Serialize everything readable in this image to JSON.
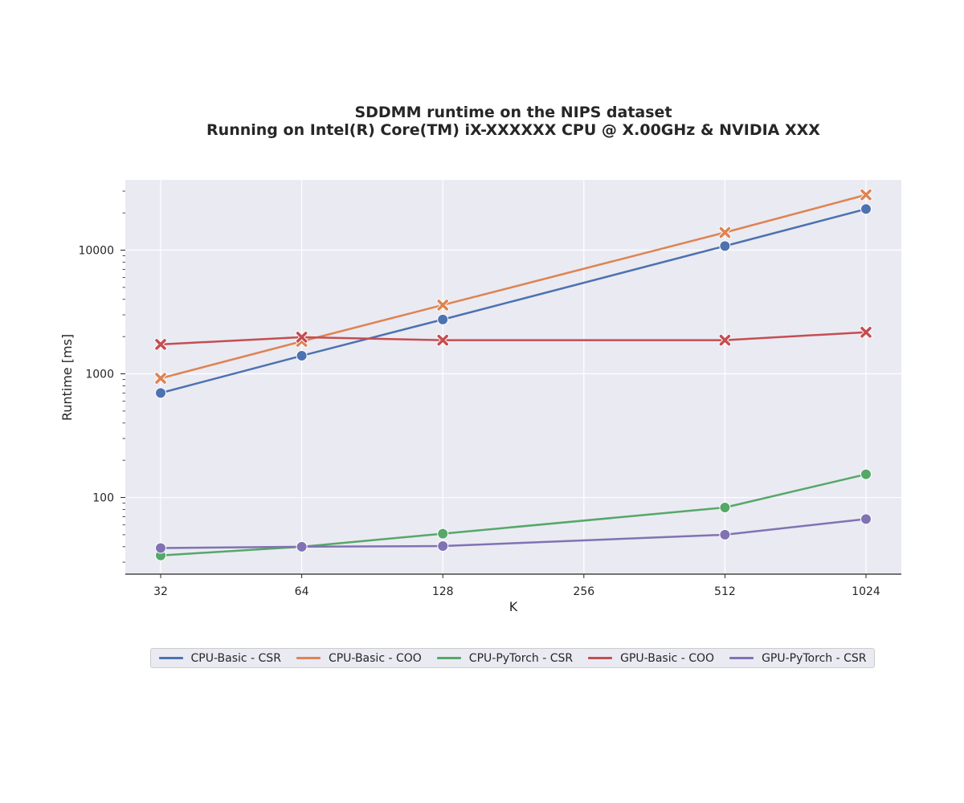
{
  "chart_data": {
    "type": "line",
    "title": "SDDMM runtime on the NIPS dataset",
    "subtitle": "Running on Intel(R) Core(TM) iX-XXXXXX CPU @ X.00GHz & NVIDIA XXX",
    "xlabel": "K",
    "ylabel": "Runtime [ms]",
    "xscale": "log2",
    "yscale": "log10",
    "x": [
      32,
      64,
      128,
      512,
      1024
    ],
    "x_ticks": [
      "32",
      "64",
      "128",
      "256",
      "512",
      "1024"
    ],
    "y_ticks": [
      "100",
      "1000",
      "10000"
    ],
    "ylim": [
      24,
      37000
    ],
    "grid": true,
    "legend_position": "bottom-center",
    "series": [
      {
        "name": "CPU-Basic - CSR",
        "color": "#4c72b0",
        "marker": "circle",
        "values": [
          700,
          1400,
          2750,
          10800,
          21500
        ]
      },
      {
        "name": "CPU-Basic - COO",
        "color": "#dd8452",
        "marker": "x",
        "values": [
          920,
          1830,
          3600,
          13900,
          28000
        ]
      },
      {
        "name": "CPU-PyTorch - CSR",
        "color": "#55a868",
        "marker": "circle",
        "values": [
          34,
          40,
          51,
          83,
          154
        ]
      },
      {
        "name": "GPU-Basic - COO",
        "color": "#c44e52",
        "marker": "x",
        "values": [
          1730,
          1980,
          1870,
          1870,
          2170
        ]
      },
      {
        "name": "GPU-PyTorch - CSR",
        "color": "#8172b3",
        "marker": "circle",
        "values": [
          39,
          40,
          40.5,
          50,
          67
        ]
      }
    ]
  }
}
